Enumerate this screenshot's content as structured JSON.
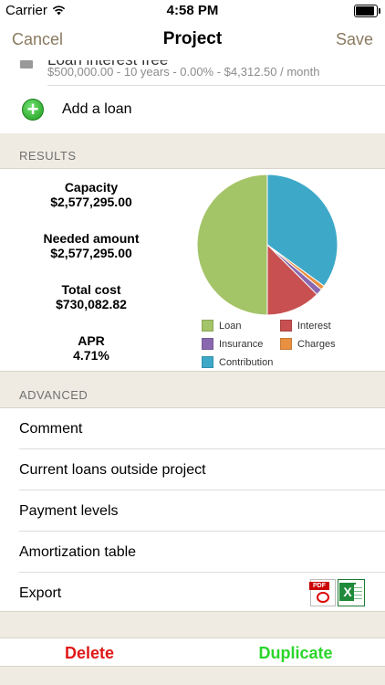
{
  "status_bar": {
    "carrier": "Carrier",
    "time": "4:58 PM"
  },
  "nav": {
    "cancel": "Cancel",
    "title": "Project",
    "save": "Save"
  },
  "loan": {
    "name": "Loan  interest free",
    "detail": "$500,000.00 - 10 years - 0.00% - $4,312.50 / month"
  },
  "add_loan": {
    "label": "Add a loan"
  },
  "results": {
    "header": "RESULTS",
    "metrics": [
      {
        "label": "Capacity",
        "value": "$2,577,295.00"
      },
      {
        "label": "Needed amount",
        "value": "$2,577,295.00"
      },
      {
        "label": "Total cost",
        "value": "$730,082.82"
      },
      {
        "label": "APR",
        "value": "4.71%"
      }
    ]
  },
  "chart_data": {
    "type": "pie",
    "title": "",
    "slices": [
      {
        "name": "Loan",
        "value": 50.0,
        "color": "#a4c468"
      },
      {
        "name": "Interest",
        "value": 12.5,
        "color": "#c85050"
      },
      {
        "name": "Insurance",
        "value": 1.5,
        "color": "#8a68b0"
      },
      {
        "name": "Charges",
        "value": 1.0,
        "color": "#e89040"
      },
      {
        "name": "Contribution",
        "value": 35.0,
        "color": "#3ea8c8"
      }
    ],
    "legend": [
      "Loan",
      "Interest",
      "Insurance",
      "Charges",
      "Contribution"
    ],
    "legend_position": "bottom"
  },
  "advanced": {
    "header": "ADVANCED",
    "items": [
      {
        "label": "Comment"
      },
      {
        "label": "Current loans outside project"
      },
      {
        "label": "Payment levels"
      },
      {
        "label": "Amortization table"
      },
      {
        "label": "Export"
      }
    ],
    "export_icons": [
      "pdf-icon",
      "excel-icon"
    ]
  },
  "actions": {
    "delete": "Delete",
    "duplicate": "Duplicate"
  },
  "colors": {
    "accent": "#8a7a5f",
    "delete": "#e01818",
    "duplicate": "#2ad62a",
    "background": "#efebe2"
  }
}
